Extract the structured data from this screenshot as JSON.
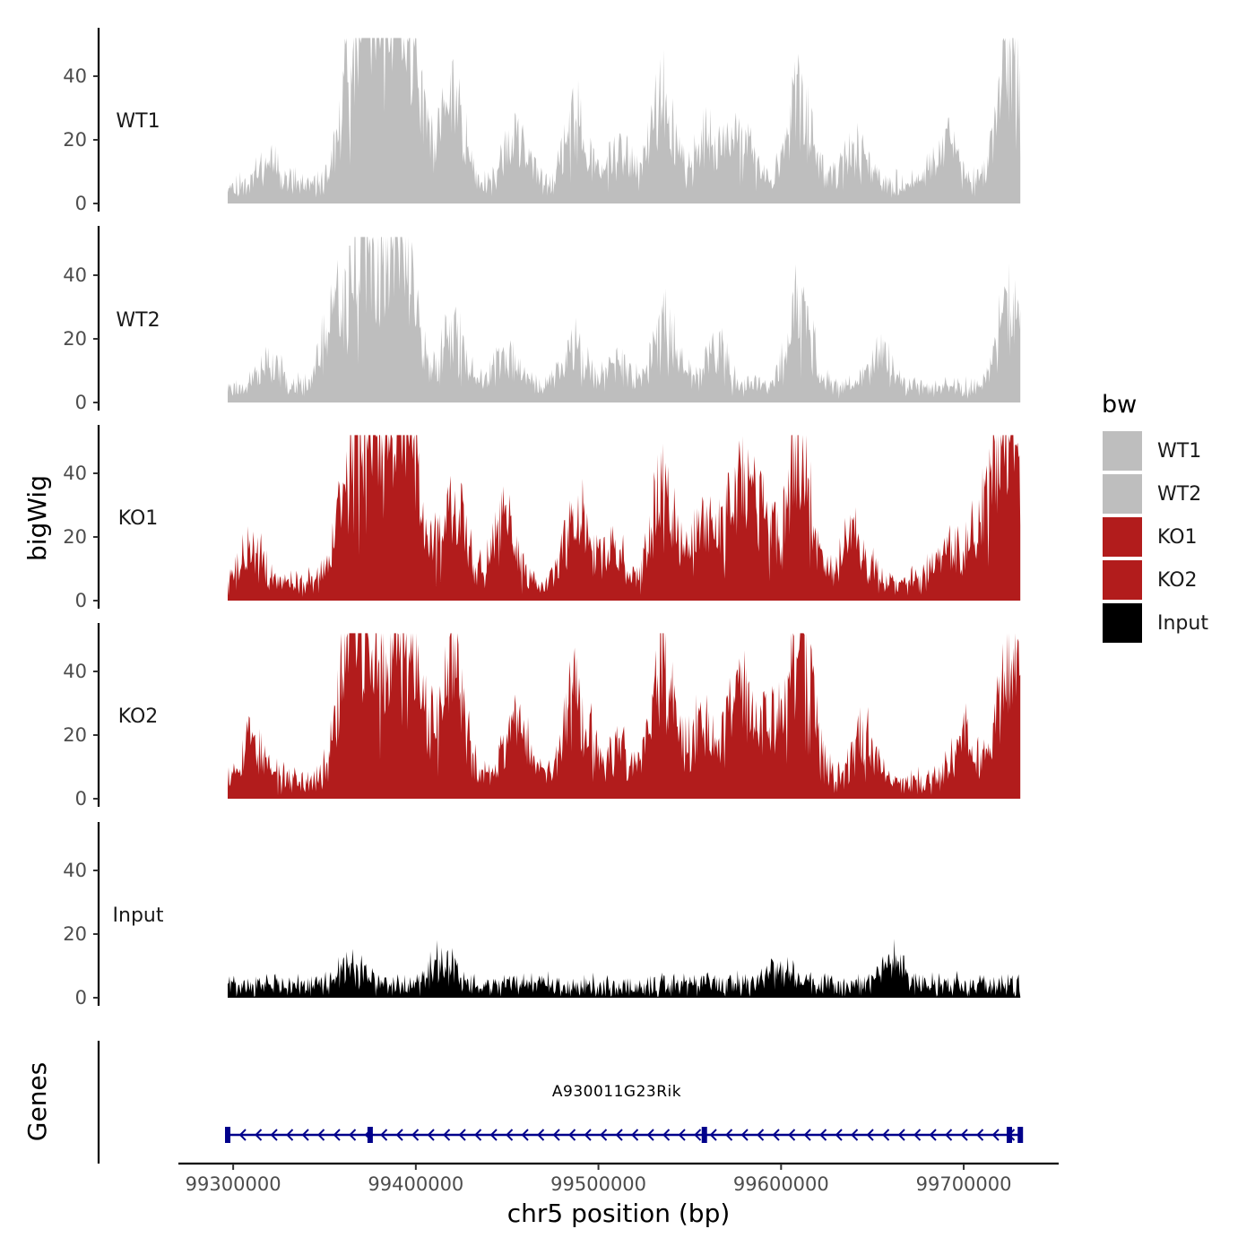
{
  "chart_data": {
    "type": "area",
    "title": "",
    "xlabel": "chr5 position (bp)",
    "ylabel": "bigWig",
    "genes_axis_label": "Genes",
    "xlim": [
      99270000,
      99752000
    ],
    "x_ticks": [
      99300000,
      99400000,
      99500000,
      99600000,
      99700000
    ],
    "x_tick_labels": [
      "99300000",
      "99400000",
      "99500000",
      "99600000",
      "99700000"
    ],
    "ylim": [
      0,
      55
    ],
    "y_ticks": [
      0,
      20,
      40
    ],
    "y_tick_labels": [
      "0",
      "20",
      "40"
    ],
    "data_range": [
      99297000,
      99731000
    ],
    "legend": {
      "title": "bw",
      "position": "right",
      "entries": [
        {
          "label": "WT1",
          "color": "#BEBEBE"
        },
        {
          "label": "WT2",
          "color": "#BEBEBE"
        },
        {
          "label": "KO1",
          "color": "#B21C1C"
        },
        {
          "label": "KO2",
          "color": "#B21C1C"
        },
        {
          "label": "Input",
          "color": "#000000"
        }
      ]
    },
    "series": [
      {
        "name": "WT1",
        "color": "#BEBEBE",
        "baseline": 6,
        "noise": 5,
        "seed": 11,
        "peaks": [
          {
            "x": 99320000,
            "y": 8
          },
          {
            "x": 99365000,
            "y": 30
          },
          {
            "x": 99372000,
            "y": 26
          },
          {
            "x": 99380000,
            "y": 38
          },
          {
            "x": 99388000,
            "y": 36
          },
          {
            "x": 99398000,
            "y": 33
          },
          {
            "x": 99420000,
            "y": 28
          },
          {
            "x": 99455000,
            "y": 14
          },
          {
            "x": 99488000,
            "y": 20
          },
          {
            "x": 99512000,
            "y": 10
          },
          {
            "x": 99535000,
            "y": 28
          },
          {
            "x": 99560000,
            "y": 15
          },
          {
            "x": 99578000,
            "y": 16
          },
          {
            "x": 99610000,
            "y": 28
          },
          {
            "x": 99640000,
            "y": 12
          },
          {
            "x": 99690000,
            "y": 13
          },
          {
            "x": 99725000,
            "y": 38
          }
        ]
      },
      {
        "name": "WT2",
        "color": "#BEBEBE",
        "baseline": 5,
        "noise": 4,
        "seed": 23,
        "peaks": [
          {
            "x": 99320000,
            "y": 7
          },
          {
            "x": 99355000,
            "y": 22
          },
          {
            "x": 99367000,
            "y": 28
          },
          {
            "x": 99377000,
            "y": 22
          },
          {
            "x": 99387000,
            "y": 24
          },
          {
            "x": 99395000,
            "y": 30
          },
          {
            "x": 99420000,
            "y": 18
          },
          {
            "x": 99450000,
            "y": 10
          },
          {
            "x": 99487000,
            "y": 14
          },
          {
            "x": 99512000,
            "y": 8
          },
          {
            "x": 99537000,
            "y": 20
          },
          {
            "x": 99565000,
            "y": 12
          },
          {
            "x": 99610000,
            "y": 26
          },
          {
            "x": 99655000,
            "y": 10
          },
          {
            "x": 99725000,
            "y": 30
          }
        ]
      },
      {
        "name": "KO1",
        "color": "#B21C1C",
        "baseline": 6,
        "noise": 6,
        "seed": 37,
        "peaks": [
          {
            "x": 99310000,
            "y": 10
          },
          {
            "x": 99363000,
            "y": 26
          },
          {
            "x": 99372000,
            "y": 30
          },
          {
            "x": 99380000,
            "y": 27
          },
          {
            "x": 99390000,
            "y": 36
          },
          {
            "x": 99397000,
            "y": 28
          },
          {
            "x": 99420000,
            "y": 28
          },
          {
            "x": 99448000,
            "y": 18
          },
          {
            "x": 99488000,
            "y": 22
          },
          {
            "x": 99508000,
            "y": 10
          },
          {
            "x": 99535000,
            "y": 30
          },
          {
            "x": 99558000,
            "y": 18
          },
          {
            "x": 99577000,
            "y": 30
          },
          {
            "x": 99590000,
            "y": 20
          },
          {
            "x": 99610000,
            "y": 43
          },
          {
            "x": 99640000,
            "y": 14
          },
          {
            "x": 99690000,
            "y": 12
          },
          {
            "x": 99710000,
            "y": 20
          },
          {
            "x": 99725000,
            "y": 50
          }
        ]
      },
      {
        "name": "KO2",
        "color": "#B21C1C",
        "baseline": 6,
        "noise": 6,
        "seed": 53,
        "peaks": [
          {
            "x": 99310000,
            "y": 12
          },
          {
            "x": 99362000,
            "y": 24
          },
          {
            "x": 99370000,
            "y": 37
          },
          {
            "x": 99382000,
            "y": 26
          },
          {
            "x": 99392000,
            "y": 30
          },
          {
            "x": 99400000,
            "y": 24
          },
          {
            "x": 99420000,
            "y": 36
          },
          {
            "x": 99455000,
            "y": 20
          },
          {
            "x": 99488000,
            "y": 28
          },
          {
            "x": 99510000,
            "y": 10
          },
          {
            "x": 99535000,
            "y": 34
          },
          {
            "x": 99556000,
            "y": 18
          },
          {
            "x": 99577000,
            "y": 28
          },
          {
            "x": 99595000,
            "y": 18
          },
          {
            "x": 99612000,
            "y": 45
          },
          {
            "x": 99645000,
            "y": 14
          },
          {
            "x": 99700000,
            "y": 14
          },
          {
            "x": 99725000,
            "y": 40
          }
        ]
      },
      {
        "name": "Input",
        "color": "#000000",
        "baseline": 4,
        "noise": 6,
        "seed": 71,
        "peaks": [
          {
            "x": 99365000,
            "y": 6
          },
          {
            "x": 99415000,
            "y": 8
          },
          {
            "x": 99600000,
            "y": 6
          },
          {
            "x": 99662000,
            "y": 8
          }
        ]
      }
    ],
    "gene": {
      "name": "A930011G23Rik",
      "strand": "-",
      "color": "#00008B",
      "start": 99297000,
      "end": 99731000,
      "exons": [
        99297000,
        99375000,
        99558000,
        99725000,
        99731000
      ]
    }
  }
}
